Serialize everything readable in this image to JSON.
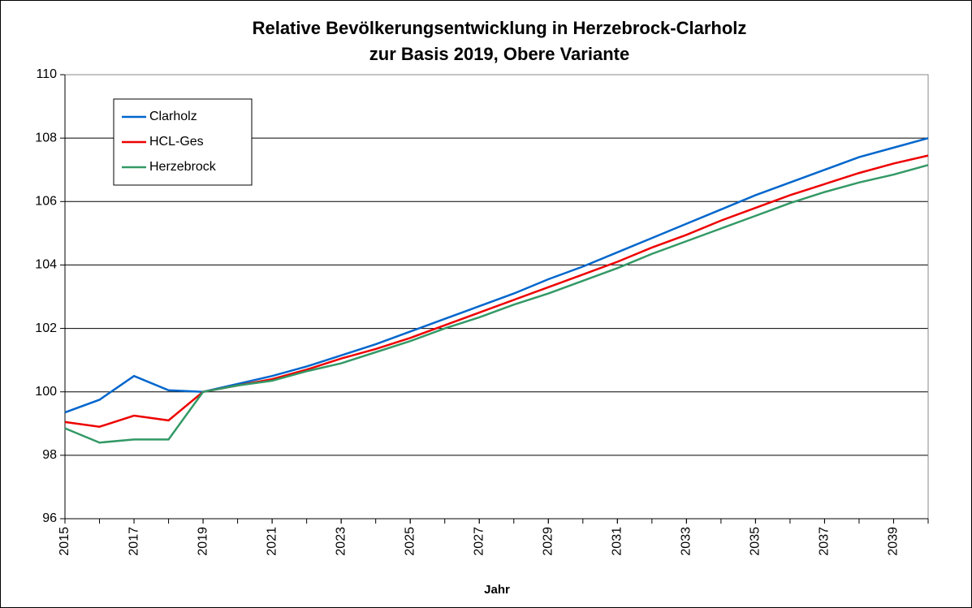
{
  "chart_data": {
    "type": "line",
    "title": [
      "Relative Bevölkerungsentwicklung in Herzebrock-Clarholz",
      "zur Basis 2019, Obere Variante"
    ],
    "x_label": "Jahr",
    "x": [
      2015,
      2016,
      2017,
      2018,
      2019,
      2020,
      2021,
      2022,
      2023,
      2024,
      2025,
      2026,
      2027,
      2028,
      2029,
      2030,
      2031,
      2032,
      2033,
      2034,
      2035,
      2036,
      2037,
      2038,
      2039,
      2040
    ],
    "series": [
      {
        "name": "Clarholz",
        "color": "#0066cc",
        "values": [
          99.35,
          99.75,
          100.5,
          100.05,
          100.0,
          100.25,
          100.5,
          100.8,
          101.15,
          101.5,
          101.9,
          102.3,
          102.7,
          103.1,
          103.55,
          103.95,
          104.4,
          104.85,
          105.3,
          105.75,
          106.2,
          106.6,
          107.0,
          107.4,
          107.7,
          108.0
        ]
      },
      {
        "name": "HCL-Ges",
        "color": "#ee0000",
        "values": [
          99.05,
          98.9,
          99.25,
          99.1,
          100.0,
          100.2,
          100.4,
          100.7,
          101.05,
          101.35,
          101.7,
          102.1,
          102.5,
          102.9,
          103.3,
          103.7,
          104.1,
          104.55,
          104.95,
          105.4,
          105.8,
          106.2,
          106.55,
          106.9,
          107.2,
          107.45
        ]
      },
      {
        "name": "Herzebrock",
        "color": "#339966",
        "values": [
          98.85,
          98.4,
          98.5,
          98.5,
          100.0,
          100.2,
          100.35,
          100.65,
          100.9,
          101.25,
          101.6,
          102.0,
          102.35,
          102.75,
          103.1,
          103.5,
          103.9,
          104.35,
          104.75,
          105.15,
          105.55,
          105.95,
          106.3,
          106.6,
          106.85,
          107.15
        ]
      }
    ],
    "xlim": [
      2015,
      2040
    ],
    "xticks": [
      2015,
      2017,
      2019,
      2021,
      2023,
      2025,
      2027,
      2029,
      2031,
      2033,
      2035,
      2037,
      2039
    ],
    "ylim": [
      96,
      110
    ],
    "yticks": [
      96,
      98,
      100,
      102,
      104,
      106,
      108,
      110
    ],
    "grid": true,
    "legend": "upper left"
  }
}
